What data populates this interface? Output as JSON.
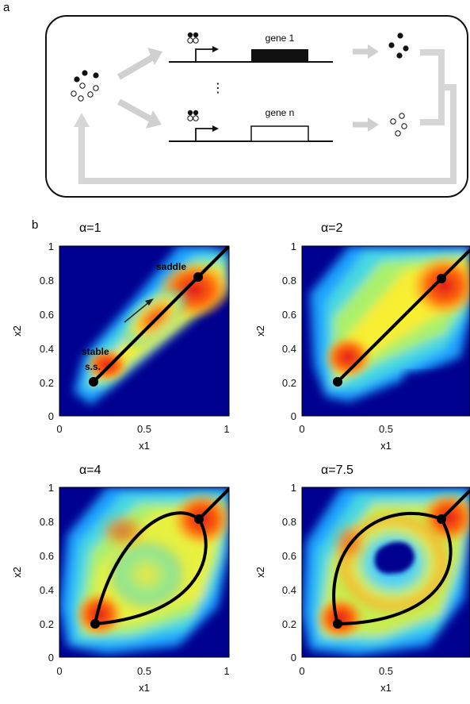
{
  "panel_a": {
    "label": "a",
    "gene1_label": "gene 1",
    "gene_n_label": "gene n",
    "ellipsis": "⋮"
  },
  "panel_b": {
    "label": "b",
    "heatmap_colormap": "jet",
    "plots": [
      {
        "title": "α=1",
        "alpha": 1,
        "xlabel": "x1",
        "ylabel": "x2",
        "xticks": [
          "0",
          "0.5",
          "1"
        ],
        "yticks": [
          "0",
          "0.2",
          "0.4",
          "0.6",
          "0.8",
          "1"
        ],
        "annotations": [
          "saddle",
          "stable",
          "s.s."
        ]
      },
      {
        "title": "α=2",
        "alpha": 2,
        "xlabel": "x1",
        "ylabel": "x2",
        "xticks": [
          "0",
          "0.5",
          "1"
        ],
        "yticks": [
          "0",
          "0.2",
          "0.4",
          "0.6",
          "0.8",
          "1"
        ]
      },
      {
        "title": "α=4",
        "alpha": 4,
        "xlabel": "x1",
        "ylabel": "x2",
        "xticks": [
          "0",
          "0.5",
          "1"
        ],
        "yticks": [
          "0",
          "0.2",
          "0.4",
          "0.6",
          "0.8",
          "1"
        ]
      },
      {
        "title": "α=7.5",
        "alpha": 7.5,
        "xlabel": "x1",
        "ylabel": "x2",
        "xticks": [
          "0",
          "0.5",
          "1"
        ],
        "yticks": [
          "0",
          "0.2",
          "0.4",
          "0.6",
          "0.8",
          "1"
        ]
      }
    ]
  },
  "chart_data": [
    {
      "type": "heatmap",
      "title": "α=1",
      "xlabel": "x1",
      "ylabel": "x2",
      "xlim": [
        0,
        1
      ],
      "ylim": [
        0,
        1
      ],
      "fixed_points": [
        {
          "name": "stable s.s.",
          "x": 0.2,
          "y": 0.2
        },
        {
          "name": "saddle",
          "x": 0.82,
          "y": 0.82
        }
      ],
      "trajectory": "diagonal"
    },
    {
      "type": "heatmap",
      "title": "α=2",
      "xlabel": "x1",
      "ylabel": "x2",
      "xlim": [
        0,
        1
      ],
      "ylim": [
        0,
        1
      ],
      "fixed_points": [
        {
          "x": 0.2,
          "y": 0.2
        },
        {
          "x": 0.82,
          "y": 0.82
        }
      ],
      "trajectory": "diagonal"
    },
    {
      "type": "heatmap",
      "title": "α=4",
      "xlabel": "x1",
      "ylabel": "x2",
      "xlim": [
        0,
        1
      ],
      "ylim": [
        0,
        1
      ],
      "fixed_points": [
        {
          "x": 0.2,
          "y": 0.2
        },
        {
          "x": 0.82,
          "y": 0.82
        }
      ],
      "trajectory": "loop"
    },
    {
      "type": "heatmap",
      "title": "α=7.5",
      "xlabel": "x1",
      "ylabel": "x2",
      "xlim": [
        0,
        1
      ],
      "ylim": [
        0,
        1
      ],
      "fixed_points": [
        {
          "x": 0.2,
          "y": 0.2
        },
        {
          "x": 0.82,
          "y": 0.82
        }
      ],
      "trajectory": "loop"
    }
  ]
}
